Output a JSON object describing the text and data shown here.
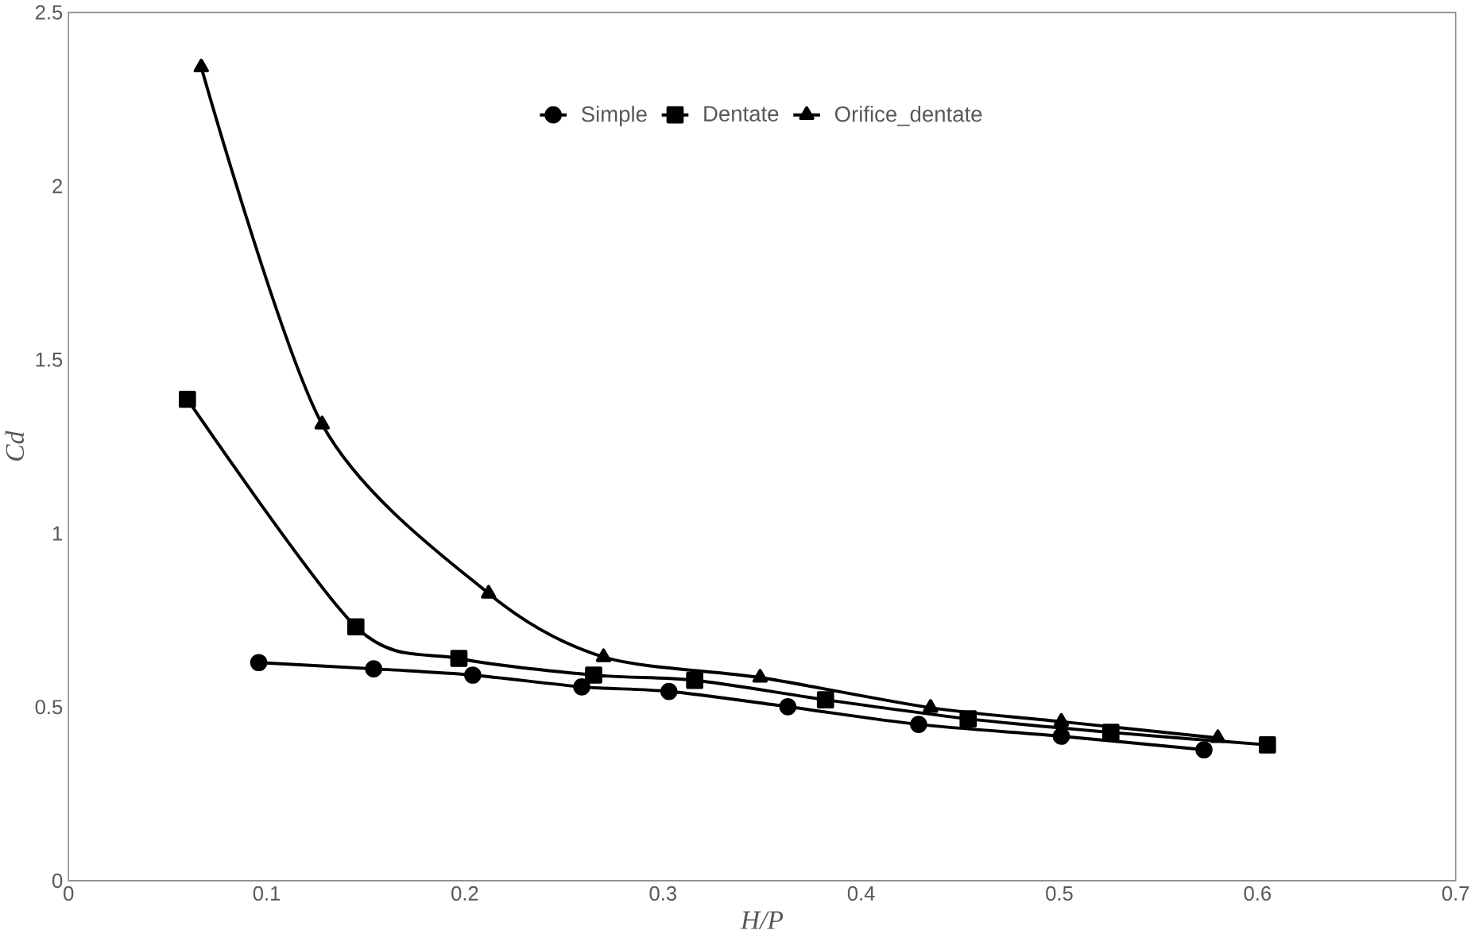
{
  "chart_data": {
    "type": "line",
    "xlabel": "H/P",
    "ylabel": "Cd",
    "xlim": [
      0,
      0.7
    ],
    "xticks": [
      0,
      0.1,
      0.2,
      0.3,
      0.4,
      0.5,
      0.6,
      0.7
    ],
    "ylim": [
      0,
      2.5
    ],
    "yticks": [
      0,
      0.5,
      1,
      1.5,
      2,
      2.5
    ],
    "grid": false,
    "legend": "top",
    "line_style": "solid",
    "series": [
      {
        "name": "Simple",
        "color": "#000000",
        "marker": "circle",
        "x": [
          0.096,
          0.154,
          0.204,
          0.259,
          0.303,
          0.363,
          0.429,
          0.501,
          0.573
        ],
        "values": [
          0.628,
          0.61,
          0.592,
          0.558,
          0.545,
          0.501,
          0.45,
          0.416,
          0.377
        ]
      },
      {
        "name": "Dentate",
        "color": "#000000",
        "marker": "square",
        "x": [
          0.06,
          0.145,
          0.197,
          0.265,
          0.316,
          0.382,
          0.454,
          0.526,
          0.605
        ],
        "values": [
          1.386,
          0.731,
          0.64,
          0.592,
          0.577,
          0.521,
          0.466,
          0.427,
          0.391
        ]
      },
      {
        "name": "Orifice_dentate",
        "color": "#000000",
        "marker": "triangle",
        "x": [
          0.067,
          0.128,
          0.212,
          0.27,
          0.349,
          0.435,
          0.501,
          0.58
        ],
        "values": [
          2.342,
          1.314,
          0.827,
          0.644,
          0.585,
          0.498,
          0.458,
          0.411
        ]
      }
    ]
  }
}
